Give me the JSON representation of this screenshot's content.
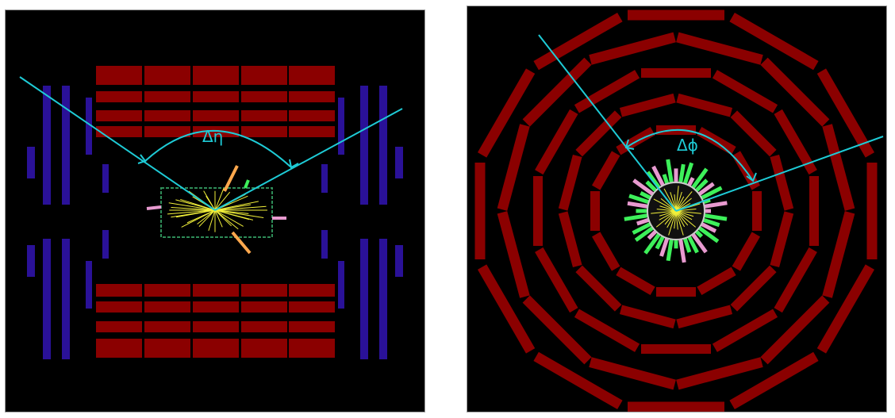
{
  "colors": {
    "background": "#000000",
    "calorimeter": "#8b0000",
    "muon": "#2a1198",
    "jet_line": "#1ecbd6",
    "tracks": "#f2f03a",
    "hadronic": "#ffa84d",
    "em_deposit": "#3df05a",
    "pink_deposit": "#e89ad0",
    "frame": "#9a9a9a"
  },
  "panels": [
    {
      "id": "longitudinal-view",
      "angle_label": "Δη",
      "icon": "side-view"
    },
    {
      "id": "transverse-view",
      "angle_label": "Δϕ",
      "icon": "end-view"
    }
  ]
}
